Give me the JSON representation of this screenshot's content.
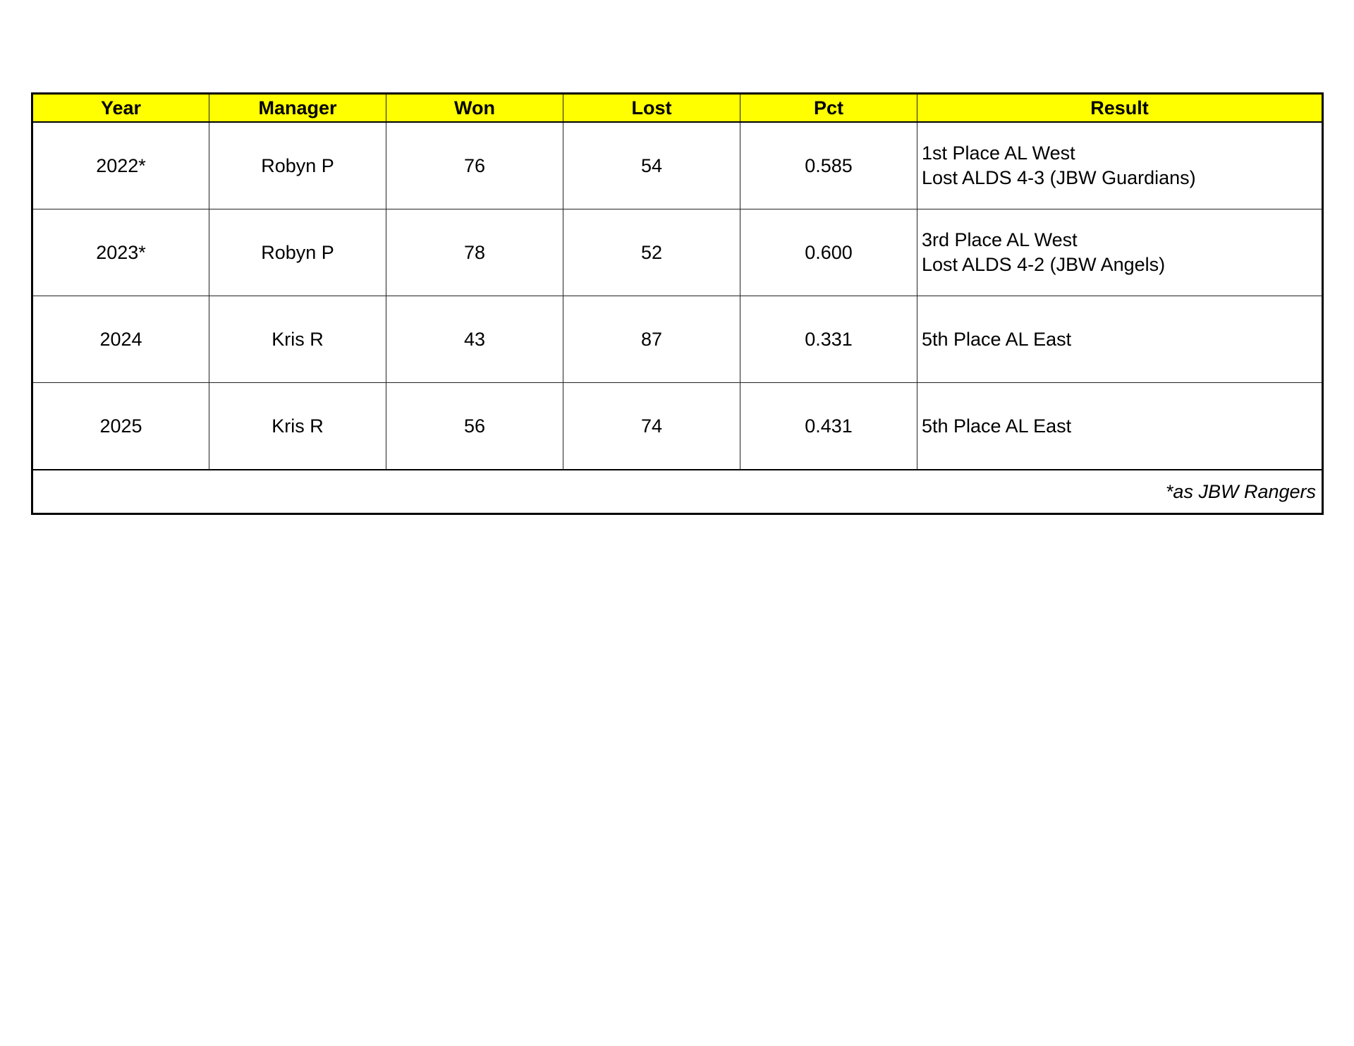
{
  "table": {
    "headers": [
      "Year",
      "Manager",
      "Won",
      "Lost",
      "Pct",
      "Result"
    ],
    "rows": [
      {
        "year": "2022*",
        "manager": "Robyn P",
        "won": "76",
        "lost": "54",
        "pct": "0.585",
        "result": [
          "1st Place AL West",
          "Lost ALDS 4-3 (JBW Guardians)"
        ]
      },
      {
        "year": "2023*",
        "manager": "Robyn P",
        "won": "78",
        "lost": "52",
        "pct": "0.600",
        "result": [
          "3rd Place AL West",
          "Lost ALDS 4-2 (JBW Angels)"
        ]
      },
      {
        "year": "2024",
        "manager": "Kris R",
        "won": "43",
        "lost": "87",
        "pct": "0.331",
        "result": [
          "5th Place AL East"
        ]
      },
      {
        "year": "2025",
        "manager": "Kris R",
        "won": "56",
        "lost": "74",
        "pct": "0.431",
        "result": [
          "5th Place AL East"
        ]
      }
    ],
    "footnote": "*as JBW Rangers"
  },
  "colors": {
    "header_bg": "#ffff00",
    "border": "#000000"
  }
}
